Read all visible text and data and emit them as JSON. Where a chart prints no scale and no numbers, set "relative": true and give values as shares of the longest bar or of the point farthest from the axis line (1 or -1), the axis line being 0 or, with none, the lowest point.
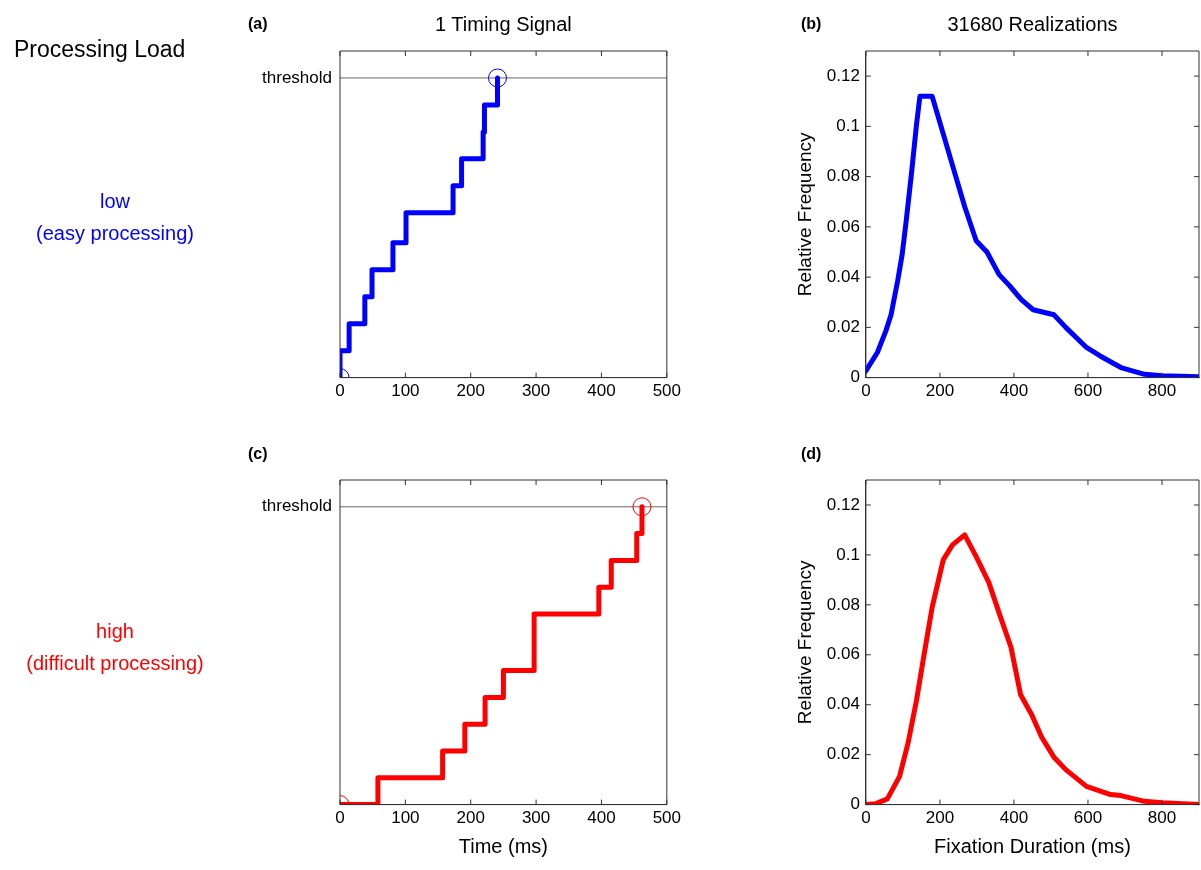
{
  "chart_data": [
    {
      "type": "other",
      "title": "Processing Load"
    },
    {
      "type": "step",
      "title": "1 Timing Signal",
      "ylabel": "low\n(easy processing)",
      "annotations": [
        "(a)"
      ],
      "relative": true,
      "xlim": [
        0,
        500
      ],
      "xticks": [
        0,
        100,
        200,
        300,
        400,
        500
      ],
      "ref_lines": [
        {
          "axis": "y",
          "value": 1,
          "label": "threshold",
          "color": "#666666"
        }
      ],
      "series": [
        {
          "color": "#0000ff",
          "x": [
            0,
            0,
            14,
            38,
            49,
            81,
            101,
            173,
            186,
            219,
            221,
            241
          ],
          "values": [
            0,
            0.09,
            0.18,
            0.27,
            0.36,
            0.45,
            0.55,
            0.64,
            0.73,
            0.82,
            0.91,
            1
          ]
        },
        {
          "type": "scatter",
          "marker": "circle",
          "color": "#0000ff",
          "x": [
            0,
            241
          ],
          "values": [
            0,
            1
          ]
        }
      ]
    },
    {
      "type": "line",
      "title": "31680 Realizations",
      "ylabel": "Relative Frequency",
      "annotations": [
        "(b)"
      ],
      "xlim": [
        0,
        900
      ],
      "xticks": [
        0,
        200,
        400,
        600,
        800
      ],
      "ylim": [
        0,
        0.13
      ],
      "yticks": [
        0,
        0.02,
        0.04,
        0.06,
        0.08,
        0.1,
        0.12
      ],
      "series": [
        {
          "color": "#0000ff",
          "x": [
            0,
            31,
            54,
            68,
            86,
            98,
            109,
            123,
            137,
            146,
            179,
            207,
            239,
            267,
            298,
            327,
            360,
            388,
            420,
            452,
            508,
            540,
            596,
            633,
            689,
            753,
            800,
            900
          ],
          "values": [
            0.0027,
            0.01,
            0.0186,
            0.025,
            0.0386,
            0.049,
            0.0625,
            0.081,
            0.101,
            0.112,
            0.112,
            0.098,
            0.082,
            0.068,
            0.0545,
            0.05,
            0.041,
            0.0366,
            0.031,
            0.027,
            0.025,
            0.02,
            0.012,
            0.0086,
            0.004,
            0.0013,
            0.0007,
            0.0003
          ]
        }
      ]
    },
    {
      "type": "step",
      "ylabel": "high\n(difficult processing)",
      "xlabel": "Time (ms)",
      "annotations": [
        "(c)"
      ],
      "relative": true,
      "xlim": [
        0,
        500
      ],
      "xticks": [
        0,
        100,
        200,
        300,
        400,
        500
      ],
      "ref_lines": [
        {
          "axis": "y",
          "value": 1,
          "label": "threshold",
          "color": "#666666"
        }
      ],
      "series": [
        {
          "color": "#ff0000",
          "x": [
            0,
            58,
            157,
            191,
            222,
            250,
            297,
            396,
            415,
            454,
            462
          ],
          "values": [
            0,
            0.09,
            0.18,
            0.27,
            0.36,
            0.45,
            0.64,
            0.73,
            0.82,
            0.91,
            1
          ]
        },
        {
          "type": "scatter",
          "marker": "circle",
          "color": "#ff0000",
          "x": [
            0,
            462
          ],
          "values": [
            0,
            1
          ]
        }
      ]
    },
    {
      "type": "line",
      "ylabel": "Relative Frequency",
      "xlabel": "Fixation Duration (ms)",
      "annotations": [
        "(d)"
      ],
      "xlim": [
        0,
        900
      ],
      "xticks": [
        0,
        200,
        400,
        600,
        800
      ],
      "ylim": [
        0,
        0.13
      ],
      "yticks": [
        0,
        0.02,
        0.04,
        0.06,
        0.08,
        0.1,
        0.12
      ],
      "series": [
        {
          "color": "#ff0000",
          "x": [
            0,
            26,
            58,
            91,
            114,
            137,
            156,
            179,
            209,
            234,
            267,
            299,
            332,
            364,
            392,
            418,
            448,
            475,
            508,
            540,
            596,
            661,
            689,
            753,
            800,
            900
          ],
          "values": [
            0,
            0.0003,
            0.0023,
            0.0113,
            0.0247,
            0.042,
            0.059,
            0.079,
            0.098,
            0.104,
            0.108,
            0.099,
            0.089,
            0.075,
            0.063,
            0.044,
            0.036,
            0.027,
            0.019,
            0.014,
            0.0073,
            0.004,
            0.0036,
            0.0013,
            0.0007,
            0
          ]
        }
      ]
    }
  ]
}
